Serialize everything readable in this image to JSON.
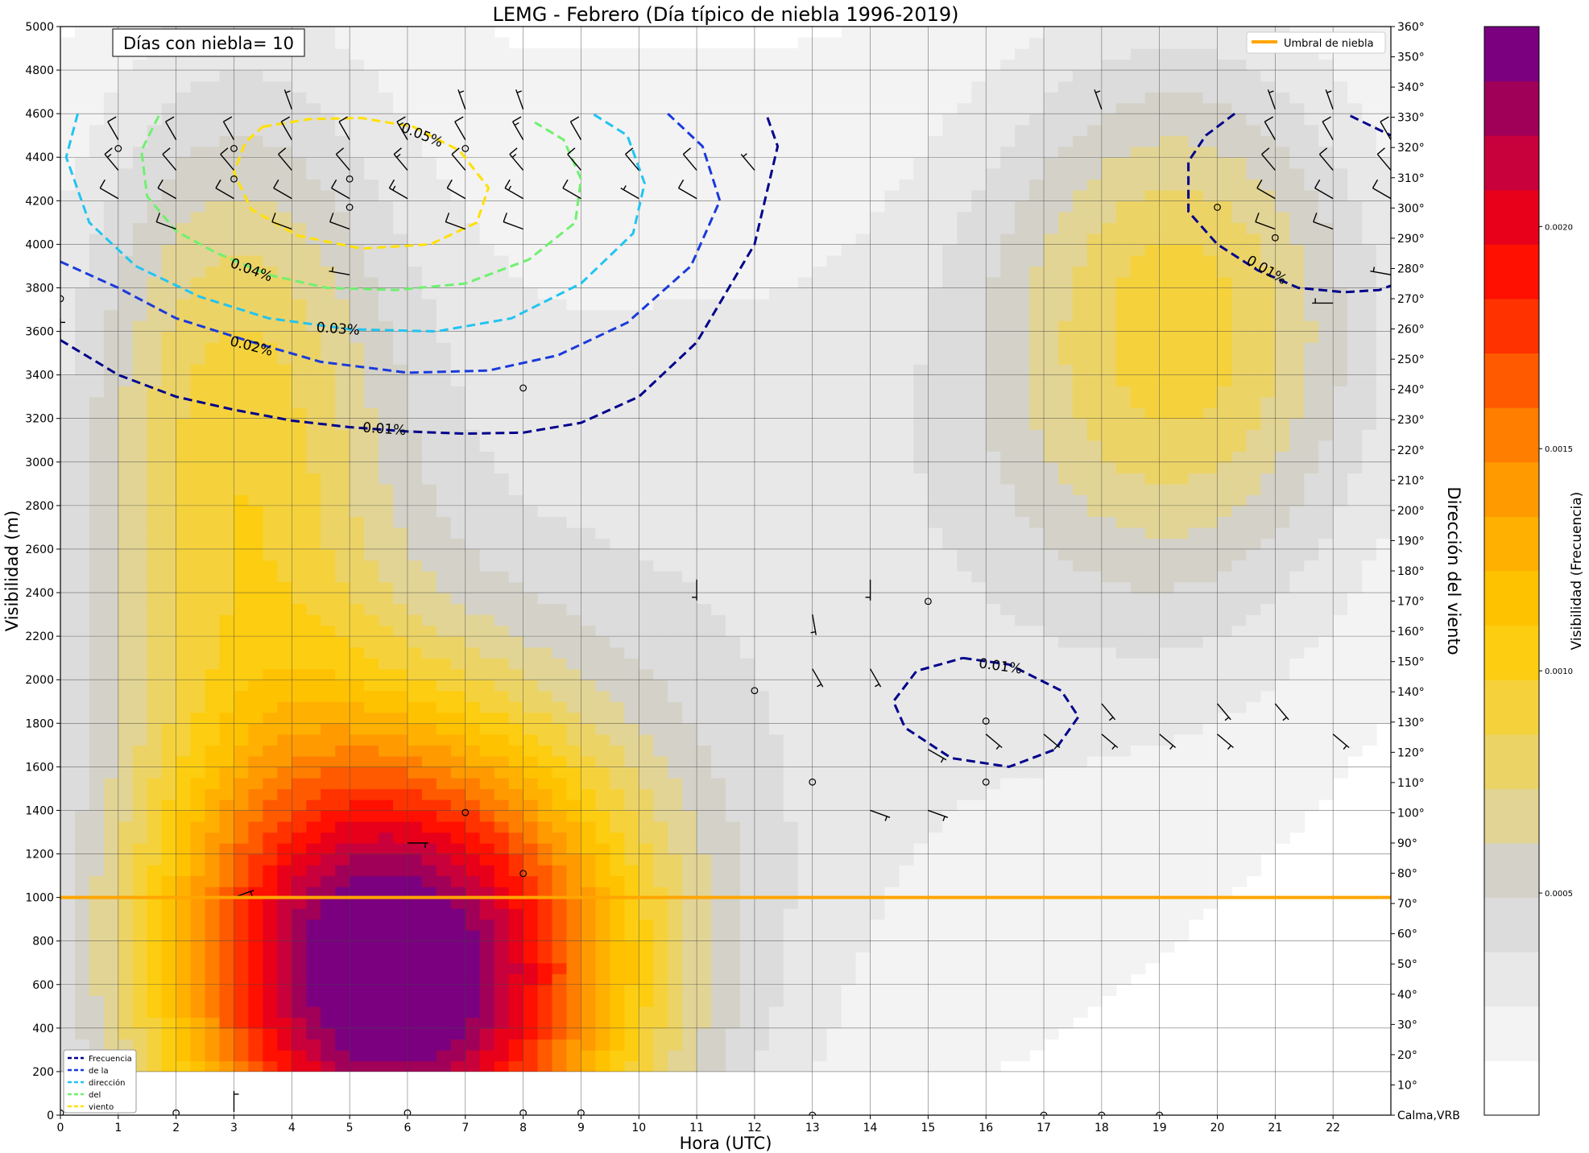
{
  "chart_data": {
    "type": "heatmap",
    "title": "LEMG - Febrero (Día típico de niebla 1996-2019)",
    "xlabel": "Hora (UTC)",
    "ylabel": "Visibilidad (m)",
    "y2label": "Dirección del viento",
    "colorbar_label": "Visibilidad (Frecuencia)",
    "fog_days_label": "Días con niebla= 10",
    "threshold_label": "Umbral de niebla",
    "threshold_value": 1000,
    "threshold_color": "#ffa500",
    "xlim": [
      0,
      23
    ],
    "ylim": [
      0,
      5000
    ],
    "y2lim": [
      0,
      360
    ],
    "x_ticks": [
      "0",
      "1",
      "2",
      "3",
      "4",
      "5",
      "6",
      "7",
      "8",
      "9",
      "10",
      "11",
      "12",
      "13",
      "14",
      "15",
      "16",
      "17",
      "18",
      "19",
      "20",
      "21",
      "22"
    ],
    "y_ticks": [
      "0",
      "200",
      "400",
      "600",
      "800",
      "1000",
      "1200",
      "1400",
      "1600",
      "1800",
      "2000",
      "2200",
      "2400",
      "2600",
      "2800",
      "3000",
      "3200",
      "3400",
      "3600",
      "3800",
      "4000",
      "4200",
      "4400",
      "4600",
      "4800",
      "5000"
    ],
    "y2_ticks": [
      "Calma,VRB",
      "10°",
      "20°",
      "30°",
      "40°",
      "50°",
      "60°",
      "70°",
      "80°",
      "90°",
      "100°",
      "110°",
      "120°",
      "130°",
      "140°",
      "150°",
      "160°",
      "170°",
      "180°",
      "190°",
      "200°",
      "210°",
      "220°",
      "230°",
      "240°",
      "250°",
      "260°",
      "270°",
      "280°",
      "290°",
      "300°",
      "310°",
      "320°",
      "330°",
      "340°",
      "350°",
      "360°"
    ],
    "colorbar_ticks": [
      {
        "value": 0.0005,
        "label": "0.0005"
      },
      {
        "value": 0.001,
        "label": "0.0010"
      },
      {
        "value": 0.0015,
        "label": "0.0015"
      },
      {
        "value": 0.002,
        "label": "0.0020"
      }
    ],
    "colorbar_max": 0.00245,
    "colorbar_colors": [
      "#ffffff",
      "#f3f3f3",
      "#e8e8e8",
      "#dcdcdc",
      "#d4d2c8",
      "#e2d494",
      "#ecd366",
      "#f5d23c",
      "#fccd10",
      "#ffc200",
      "#ffb000",
      "#ff9a00",
      "#ff7e00",
      "#ff5a00",
      "#ff3200",
      "#ff1000",
      "#e8001a",
      "#c8003c",
      "#a00058",
      "#7a0080"
    ],
    "density_blobs": [
      {
        "x": 5.8,
        "y": 620,
        "sx": 2.9,
        "sy": 820,
        "a": 0.00245
      },
      {
        "x": 3.0,
        "y": 3100,
        "sx": 2.0,
        "sy": 1200,
        "a": 0.00078
      },
      {
        "x": 19.4,
        "y": 3650,
        "sx": 2.4,
        "sy": 900,
        "a": 0.0008
      },
      {
        "x": 11.0,
        "y": 2400,
        "sx": 7.5,
        "sy": 1800,
        "a": 0.00032
      }
    ],
    "contour_legend": [
      "Frecuencia",
      "de  la",
      "dirección",
      "del",
      "viento"
    ],
    "contours": [
      {
        "label": "0.01%",
        "color": "#00008b",
        "segments": [
          [
            [
              0,
              3560
            ],
            [
              1,
              3400
            ],
            [
              2,
              3300
            ],
            [
              3,
              3240
            ],
            [
              4,
              3190
            ],
            [
              5,
              3160
            ],
            [
              6,
              3140
            ],
            [
              7,
              3130
            ],
            [
              8,
              3135
            ],
            [
              9,
              3180
            ],
            [
              10,
              3300
            ],
            [
              11,
              3550
            ],
            [
              12,
              4000
            ],
            [
              12.4,
              4450
            ],
            [
              12.2,
              4600
            ]
          ],
          [
            [
              15.6,
              2100
            ],
            [
              16.4,
              2070
            ],
            [
              17.3,
              1950
            ],
            [
              17.6,
              1830
            ],
            [
              17.2,
              1680
            ],
            [
              16.4,
              1600
            ],
            [
              15.4,
              1640
            ],
            [
              14.6,
              1780
            ],
            [
              14.4,
              1900
            ],
            [
              14.8,
              2040
            ],
            [
              15.6,
              2100
            ]
          ],
          [
            [
              20.3,
              4600
            ],
            [
              19.8,
              4500
            ],
            [
              19.5,
              4380
            ],
            [
              19.5,
              4150
            ],
            [
              20.0,
              4000
            ],
            [
              20.7,
              3880
            ],
            [
              21.4,
              3800
            ],
            [
              22.2,
              3780
            ],
            [
              22.8,
              3790
            ],
            [
              23,
              3810
            ]
          ],
          [
            [
              22.3,
              4590
            ],
            [
              23,
              4500
            ]
          ]
        ],
        "labels": [
          {
            "x": 5.6,
            "y": 3150,
            "rot": 4
          },
          {
            "x": 16.25,
            "y": 2060,
            "rot": 8
          },
          {
            "x": 20.85,
            "y": 3880,
            "rot": 30
          }
        ]
      },
      {
        "label": "0.02%",
        "color": "#1a3adb",
        "segments": [
          [
            [
              0,
              3920
            ],
            [
              1,
              3800
            ],
            [
              2,
              3660
            ],
            [
              3.2,
              3560
            ],
            [
              4.5,
              3460
            ],
            [
              6,
              3410
            ],
            [
              7.4,
              3420
            ],
            [
              8.6,
              3490
            ],
            [
              9.8,
              3640
            ],
            [
              10.9,
              3900
            ],
            [
              11.4,
              4200
            ],
            [
              11.1,
              4450
            ],
            [
              10.5,
              4600
            ]
          ]
        ],
        "labels": [
          {
            "x": 3.3,
            "y": 3530,
            "rot": 14
          }
        ]
      },
      {
        "label": "0.03%",
        "color": "#22c4f0",
        "segments": [
          [
            [
              0.3,
              4600
            ],
            [
              0.1,
              4400
            ],
            [
              0.5,
              4100
            ],
            [
              1.3,
              3900
            ],
            [
              2.4,
              3760
            ],
            [
              3.6,
              3660
            ],
            [
              5,
              3610
            ],
            [
              6.5,
              3600
            ],
            [
              7.8,
              3660
            ],
            [
              9,
              3820
            ],
            [
              9.9,
              4050
            ],
            [
              10.1,
              4280
            ],
            [
              9.8,
              4500
            ],
            [
              9.2,
              4600
            ]
          ]
        ],
        "labels": [
          {
            "x": 4.8,
            "y": 3610,
            "rot": 4
          }
        ]
      },
      {
        "label": "0.04%",
        "color": "#70f070",
        "segments": [
          [
            [
              1.7,
              4590
            ],
            [
              1.4,
              4430
            ],
            [
              1.5,
              4220
            ],
            [
              2.0,
              4060
            ],
            [
              2.7,
              3960
            ],
            [
              3.6,
              3860
            ],
            [
              4.6,
              3800
            ],
            [
              5.8,
              3790
            ],
            [
              7.0,
              3820
            ],
            [
              8.1,
              3930
            ],
            [
              8.9,
              4100
            ],
            [
              9.0,
              4300
            ],
            [
              8.7,
              4480
            ],
            [
              8.2,
              4560
            ]
          ]
        ],
        "labels": [
          {
            "x": 3.3,
            "y": 3880,
            "rot": 20
          }
        ]
      },
      {
        "label": "0.05%",
        "color": "#ffe000",
        "segments": [
          [
            [
              3.5,
              4540
            ],
            [
              4.3,
              4575
            ],
            [
              5.2,
              4580
            ],
            [
              6.1,
              4540
            ],
            [
              6.9,
              4430
            ],
            [
              7.4,
              4260
            ],
            [
              7.2,
              4100
            ],
            [
              6.4,
              4000
            ],
            [
              5.2,
              3980
            ],
            [
              4.1,
              4040
            ],
            [
              3.3,
              4160
            ],
            [
              3.0,
              4330
            ],
            [
              3.2,
              4470
            ],
            [
              3.5,
              4540
            ]
          ]
        ],
        "labels": [
          {
            "x": 6.25,
            "y": 4500,
            "rot": 22
          }
        ]
      }
    ],
    "wind_calm_points": [
      [
        0,
        3750
      ],
      [
        1,
        4440
      ],
      [
        3,
        4440
      ],
      [
        3,
        4300
      ],
      [
        5,
        4300
      ],
      [
        5,
        4170
      ],
      [
        7,
        4440
      ],
      [
        8,
        3340
      ],
      [
        7,
        1390
      ],
      [
        8,
        1110
      ],
      [
        12,
        1950
      ],
      [
        13,
        1530
      ],
      [
        15,
        2360
      ],
      [
        16,
        1810
      ],
      [
        16,
        1530
      ],
      [
        20,
        4170
      ],
      [
        21,
        4030
      ],
      [
        0,
        10
      ],
      [
        2,
        10
      ],
      [
        6,
        10
      ],
      [
        8,
        10
      ],
      [
        9,
        10
      ],
      [
        13,
        0
      ],
      [
        17,
        0
      ],
      [
        18,
        0
      ],
      [
        19,
        0
      ]
    ],
    "wind_barbs": [
      [
        1,
        4480,
        330,
        10
      ],
      [
        2,
        4480,
        330,
        10
      ],
      [
        3,
        4480,
        330,
        10
      ],
      [
        4,
        4480,
        330,
        10
      ],
      [
        5,
        4480,
        330,
        10
      ],
      [
        6,
        4480,
        330,
        15
      ],
      [
        7,
        4480,
        330,
        10
      ],
      [
        8,
        4480,
        330,
        15
      ],
      [
        9,
        4480,
        330,
        10
      ],
      [
        1,
        4340,
        320,
        15
      ],
      [
        2,
        4340,
        320,
        10
      ],
      [
        3,
        4340,
        320,
        10
      ],
      [
        4,
        4340,
        320,
        10
      ],
      [
        5,
        4340,
        320,
        10
      ],
      [
        6,
        4340,
        320,
        15
      ],
      [
        7,
        4340,
        320,
        10
      ],
      [
        8,
        4340,
        320,
        15
      ],
      [
        9,
        4340,
        320,
        10
      ],
      [
        10,
        4340,
        320,
        10
      ],
      [
        11,
        4340,
        320,
        10
      ],
      [
        12,
        4340,
        320,
        5
      ],
      [
        1,
        4210,
        300,
        10
      ],
      [
        2,
        4210,
        300,
        10
      ],
      [
        3,
        4210,
        300,
        10
      ],
      [
        4,
        4210,
        300,
        10
      ],
      [
        5,
        4210,
        300,
        10
      ],
      [
        6,
        4210,
        300,
        15
      ],
      [
        7,
        4210,
        300,
        10
      ],
      [
        8,
        4210,
        300,
        15
      ],
      [
        9,
        4210,
        300,
        10
      ],
      [
        10,
        4210,
        300,
        5
      ],
      [
        11,
        4210,
        300,
        10
      ],
      [
        2,
        4070,
        290,
        10
      ],
      [
        4,
        4070,
        290,
        10
      ],
      [
        5,
        4070,
        290,
        10
      ],
      [
        7,
        4070,
        290,
        10
      ],
      [
        8,
        4070,
        290,
        10
      ],
      [
        5,
        3860,
        280,
        5
      ],
      [
        4,
        4620,
        340,
        5
      ],
      [
        7,
        4620,
        340,
        5
      ],
      [
        8,
        4620,
        340,
        5
      ],
      [
        18,
        4620,
        340,
        5
      ],
      [
        21,
        4620,
        340,
        5
      ],
      [
        22,
        4620,
        340,
        5
      ],
      [
        21,
        4480,
        330,
        10
      ],
      [
        22,
        4480,
        330,
        10
      ],
      [
        23,
        4480,
        330,
        10
      ],
      [
        21,
        4340,
        320,
        10
      ],
      [
        22,
        4340,
        320,
        10
      ],
      [
        23,
        4340,
        320,
        10
      ],
      [
        21,
        4210,
        300,
        10
      ],
      [
        22,
        4210,
        300,
        10
      ],
      [
        23,
        4210,
        300,
        10
      ],
      [
        21,
        4070,
        290,
        10
      ],
      [
        22,
        4070,
        290,
        10
      ],
      [
        23,
        3860,
        280,
        5
      ],
      [
        22,
        3730,
        270,
        5
      ],
      [
        6,
        1250,
        90,
        5
      ],
      [
        3,
        1000,
        70,
        5
      ],
      [
        3,
        15,
        0,
        5
      ],
      [
        0,
        3560,
        0,
        5
      ],
      [
        11,
        2460,
        180,
        5
      ],
      [
        14,
        2460,
        180,
        5
      ],
      [
        13,
        2300,
        170,
        5
      ],
      [
        13,
        2050,
        150,
        5
      ],
      [
        14,
        2050,
        150,
        5
      ],
      [
        14,
        1400,
        110,
        5
      ],
      [
        15,
        1400,
        110,
        5
      ],
      [
        15,
        1680,
        120,
        5
      ],
      [
        16,
        1750,
        130,
        5
      ],
      [
        17,
        1750,
        130,
        5
      ],
      [
        18,
        1750,
        130,
        5
      ],
      [
        19,
        1750,
        130,
        5
      ],
      [
        20,
        1750,
        130,
        5
      ],
      [
        22,
        1750,
        130,
        5
      ],
      [
        18,
        1890,
        140,
        5
      ],
      [
        20,
        1890,
        140,
        5
      ],
      [
        21,
        1890,
        140,
        5
      ]
    ]
  }
}
